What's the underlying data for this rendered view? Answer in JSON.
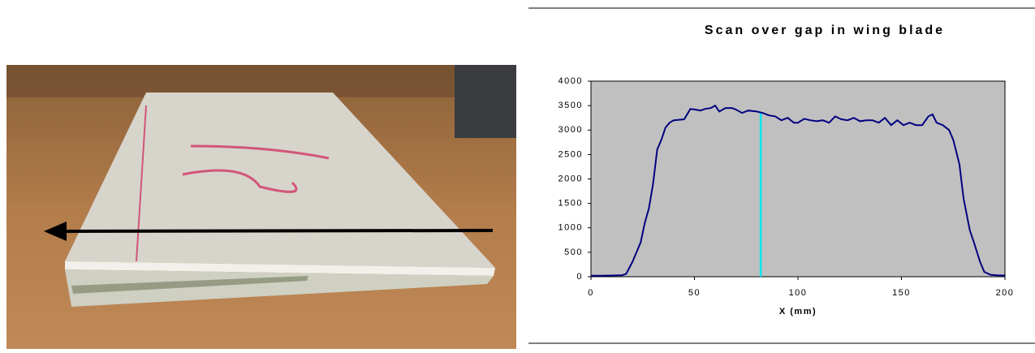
{
  "chart_data": {
    "type": "line",
    "title": "Scan over gap in wing blade",
    "x_label": "X (mm)",
    "x": [
      0,
      5,
      10,
      15,
      17,
      20,
      22,
      24,
      26,
      28,
      30,
      32,
      34,
      36,
      38,
      40,
      45,
      48,
      50,
      53,
      55,
      58,
      60,
      62,
      65,
      68,
      70,
      73,
      76,
      80,
      83,
      86,
      89,
      92,
      95,
      98,
      100,
      103,
      106,
      109,
      112,
      115,
      118,
      121,
      124,
      127,
      130,
      133,
      136,
      139,
      142,
      145,
      148,
      151,
      154,
      157,
      160,
      163,
      165,
      167,
      170,
      173,
      175,
      178,
      180,
      183,
      185,
      188,
      190,
      193,
      196,
      200
    ],
    "values": [
      20,
      20,
      25,
      30,
      60,
      300,
      500,
      700,
      1100,
      1400,
      1900,
      2600,
      2800,
      3050,
      3150,
      3200,
      3220,
      3430,
      3420,
      3400,
      3430,
      3450,
      3500,
      3380,
      3450,
      3450,
      3420,
      3350,
      3400,
      3380,
      3350,
      3300,
      3280,
      3200,
      3250,
      3150,
      3150,
      3230,
      3200,
      3180,
      3200,
      3150,
      3280,
      3220,
      3200,
      3250,
      3180,
      3200,
      3200,
      3150,
      3250,
      3100,
      3200,
      3100,
      3150,
      3100,
      3100,
      3280,
      3320,
      3150,
      3100,
      3000,
      2800,
      2300,
      1600,
      950,
      700,
      300,
      100,
      40,
      30,
      25
    ],
    "color": "#000080",
    "marker": {
      "x": 82,
      "color": "#00e5ee"
    },
    "xlim": [
      0,
      200
    ],
    "xticks": [
      0,
      50,
      100,
      150,
      200
    ],
    "ylim": [
      0,
      4000
    ],
    "yticks": [
      0,
      500,
      1000,
      1500,
      2000,
      2500,
      3000,
      3500,
      4000
    ],
    "grid": false,
    "plot_background": "#c0c0c0"
  }
}
